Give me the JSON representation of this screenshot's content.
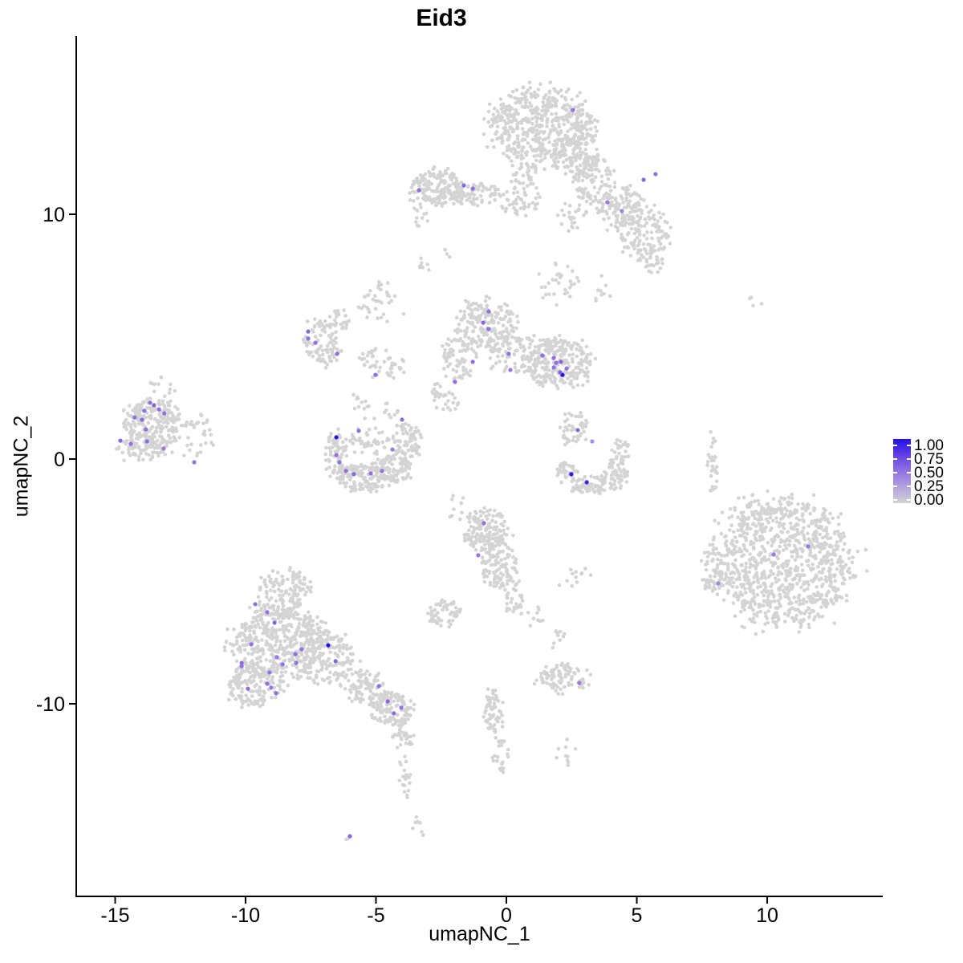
{
  "title": "Eid3",
  "axes": {
    "x": {
      "label": "umapNC_1",
      "ticks": [
        -15,
        -10,
        -5,
        0,
        5,
        10
      ]
    },
    "y": {
      "label": "umapNC_2",
      "ticks": [
        10,
        0,
        -10
      ]
    }
  },
  "legend": {
    "labels": [
      "1.00",
      "0.75",
      "0.50",
      "0.25",
      "0.00"
    ],
    "values": [
      1.0,
      0.75,
      0.5,
      0.25,
      0.0
    ]
  },
  "style": {
    "background": "#ffffff",
    "axis_color": "#000000",
    "gray_point_color": "#d4d4d4",
    "gradient_stops": [
      {
        "t": 0.0,
        "color": "#d3d3d3"
      },
      {
        "t": 0.25,
        "color": "#b3a3df"
      },
      {
        "t": 0.5,
        "color": "#8f72e2"
      },
      {
        "t": 0.75,
        "color": "#6340e6"
      },
      {
        "t": 1.0,
        "color": "#2111e8"
      }
    ],
    "gray_point_radius": 2.3,
    "expr_point_radius": 2.6
  },
  "chart_data": {
    "type": "scatter",
    "title": "Eid3",
    "xlabel": "umapNC_1",
    "ylabel": "umapNC_2",
    "xlim": [
      -16.5,
      14.4
    ],
    "ylim": [
      -17.9,
      17.3
    ],
    "legend_range": [
      0.0,
      1.0
    ],
    "legend_breaks": [
      0.0,
      0.25,
      0.5,
      0.75,
      1.0
    ],
    "clusters": [
      {
        "cx": 1.35,
        "cy": 13.6,
        "rx": 1.75,
        "ry": 1.35,
        "n": 520
      },
      {
        "cx": 2.75,
        "cy": 12.6,
        "rx": 0.85,
        "ry": 1.05,
        "n": 130
      },
      {
        "cx": 0.75,
        "cy": 11.1,
        "rx": 0.55,
        "ry": 0.95,
        "n": 55
      },
      {
        "cx": 3.3,
        "cy": 11.3,
        "rx": 0.75,
        "ry": 0.85,
        "n": 90
      },
      {
        "cx": 4.35,
        "cy": 10.3,
        "rx": 0.8,
        "ry": 0.8,
        "n": 110
      },
      {
        "cx": 5.3,
        "cy": 9.3,
        "rx": 0.85,
        "ry": 0.9,
        "n": 120
      },
      {
        "cx": 5.6,
        "cy": 8.2,
        "rx": 0.5,
        "ry": 0.55,
        "n": 35
      },
      {
        "cx": 2.5,
        "cy": 9.9,
        "rx": 0.5,
        "ry": 0.6,
        "n": 25
      },
      {
        "cx": -2.6,
        "cy": 11.1,
        "rx": 1.0,
        "ry": 0.65,
        "n": 170
      },
      {
        "cx": -1.1,
        "cy": 10.8,
        "rx": 0.85,
        "ry": 0.4,
        "n": 70
      },
      {
        "cx": 0.5,
        "cy": 10.4,
        "rx": 0.7,
        "ry": 0.35,
        "n": 25
      },
      {
        "cx": -3.3,
        "cy": 9.9,
        "rx": 0.3,
        "ry": 0.45,
        "n": 12
      },
      {
        "cx": -0.75,
        "cy": 5.5,
        "rx": 1.0,
        "ry": 0.95,
        "n": 170
      },
      {
        "cx": -1.8,
        "cy": 4.3,
        "rx": 0.55,
        "ry": 0.95,
        "n": 80
      },
      {
        "cx": 0.3,
        "cy": 4.3,
        "rx": 0.95,
        "ry": 0.85,
        "n": 90
      },
      {
        "cx": 2.0,
        "cy": 3.9,
        "rx": 1.1,
        "ry": 0.95,
        "n": 260
      },
      {
        "cx": -2.3,
        "cy": 2.6,
        "rx": 0.5,
        "ry": 0.7,
        "n": 35
      },
      {
        "cx": 1.9,
        "cy": 7.2,
        "rx": 0.7,
        "ry": 0.8,
        "n": 30
      },
      {
        "cx": 3.6,
        "cy": 6.9,
        "rx": 0.4,
        "ry": 0.5,
        "n": 10
      },
      {
        "cx": -7.1,
        "cy": 4.7,
        "rx": 0.65,
        "ry": 0.85,
        "n": 90
      },
      {
        "cx": -6.5,
        "cy": 5.7,
        "rx": 0.45,
        "ry": 0.4,
        "n": 25
      },
      {
        "cx": -4.9,
        "cy": 6.3,
        "rx": 0.8,
        "ry": 0.6,
        "n": 30
      },
      {
        "cx": -4.8,
        "cy": 3.9,
        "rx": 0.9,
        "ry": 0.55,
        "n": 45
      },
      {
        "cx": -13.6,
        "cy": 1.5,
        "rx": 1.0,
        "ry": 0.85,
        "n": 220
      },
      {
        "cx": -13.9,
        "cy": 0.45,
        "rx": 0.85,
        "ry": 0.5,
        "n": 80
      },
      {
        "cx": -12.1,
        "cy": 1.0,
        "rx": 0.8,
        "ry": 0.8,
        "n": 35
      },
      {
        "cx": -13.1,
        "cy": 3.0,
        "rx": 0.6,
        "ry": 0.35,
        "n": 12
      },
      {
        "cx": -6.5,
        "cy": 0.3,
        "rx": 0.4,
        "ry": 0.85,
        "n": 70
      },
      {
        "cx": -5.5,
        "cy": -0.75,
        "rx": 0.85,
        "ry": 0.5,
        "n": 130
      },
      {
        "cx": -4.3,
        "cy": -0.4,
        "rx": 0.6,
        "ry": 0.55,
        "n": 100
      },
      {
        "cx": -3.8,
        "cy": 0.8,
        "rx": 0.5,
        "ry": 0.65,
        "n": 70
      },
      {
        "cx": -5.3,
        "cy": 0.7,
        "rx": 0.7,
        "ry": 0.55,
        "n": 45
      },
      {
        "cx": -5.0,
        "cy": 2.2,
        "rx": 0.9,
        "ry": 0.5,
        "n": 22
      },
      {
        "cx": 2.6,
        "cy": 1.3,
        "rx": 0.55,
        "ry": 0.6,
        "n": 45
      },
      {
        "cx": 2.3,
        "cy": -0.55,
        "rx": 0.35,
        "ry": 0.4,
        "n": 35
      },
      {
        "cx": 3.2,
        "cy": -1.05,
        "rx": 0.6,
        "ry": 0.35,
        "n": 70
      },
      {
        "cx": 4.2,
        "cy": -0.6,
        "rx": 0.4,
        "ry": 0.55,
        "n": 60
      },
      {
        "cx": 4.45,
        "cy": 0.4,
        "rx": 0.3,
        "ry": 0.45,
        "n": 25
      },
      {
        "cx": -0.8,
        "cy": -2.9,
        "rx": 0.8,
        "ry": 0.75,
        "n": 150
      },
      {
        "cx": -0.3,
        "cy": -4.3,
        "rx": 0.6,
        "ry": 0.85,
        "n": 110
      },
      {
        "cx": 0.25,
        "cy": -5.6,
        "rx": 0.35,
        "ry": 0.6,
        "n": 30
      },
      {
        "cx": 1.0,
        "cy": -6.3,
        "rx": 0.5,
        "ry": 0.5,
        "n": 12
      },
      {
        "cx": 2.6,
        "cy": -4.8,
        "rx": 0.6,
        "ry": 0.5,
        "n": 12
      },
      {
        "cx": 10.6,
        "cy": -4.3,
        "rx": 2.4,
        "ry": 2.25,
        "n": 950
      },
      {
        "cx": 7.9,
        "cy": -4.5,
        "rx": 0.4,
        "ry": 0.85,
        "n": 45
      },
      {
        "cx": 10.1,
        "cy": -2.0,
        "rx": 1.2,
        "ry": 0.5,
        "n": 50
      },
      {
        "cx": 7.9,
        "cy": -0.2,
        "rx": 0.2,
        "ry": 1.1,
        "n": 30
      },
      {
        "cx": 9.5,
        "cy": 6.35,
        "rx": 0.3,
        "ry": 0.25,
        "n": 4
      },
      {
        "cx": -8.5,
        "cy": -5.4,
        "rx": 0.9,
        "ry": 0.75,
        "n": 140
      },
      {
        "cx": -8.7,
        "cy": -7.5,
        "rx": 1.6,
        "ry": 1.25,
        "n": 470
      },
      {
        "cx": -9.6,
        "cy": -9.2,
        "rx": 0.95,
        "ry": 0.8,
        "n": 160
      },
      {
        "cx": -6.9,
        "cy": -8.1,
        "rx": 1.0,
        "ry": 0.95,
        "n": 160
      },
      {
        "cx": -5.5,
        "cy": -9.3,
        "rx": 0.75,
        "ry": 0.6,
        "n": 90
      },
      {
        "cx": -4.4,
        "cy": -10.2,
        "rx": 0.75,
        "ry": 0.6,
        "n": 130
      },
      {
        "cx": -3.95,
        "cy": -11.3,
        "rx": 0.4,
        "ry": 0.5,
        "n": 30
      },
      {
        "cx": -3.85,
        "cy": -12.9,
        "rx": 0.25,
        "ry": 0.85,
        "n": 20
      },
      {
        "cx": 2.2,
        "cy": -8.9,
        "rx": 0.9,
        "ry": 0.55,
        "n": 90
      },
      {
        "cx": 2.0,
        "cy": -7.4,
        "rx": 0.3,
        "ry": 0.5,
        "n": 10
      },
      {
        "cx": 2.3,
        "cy": -11.9,
        "rx": 0.4,
        "ry": 0.5,
        "n": 10
      },
      {
        "cx": -0.45,
        "cy": -10.3,
        "rx": 0.35,
        "ry": 0.9,
        "n": 60
      },
      {
        "cx": -0.2,
        "cy": -12.1,
        "rx": 0.3,
        "ry": 0.6,
        "n": 25
      },
      {
        "cx": -2.4,
        "cy": -6.3,
        "rx": 0.55,
        "ry": 0.5,
        "n": 60
      },
      {
        "cx": -1.9,
        "cy": -1.9,
        "rx": 0.5,
        "ry": 0.5,
        "n": 10
      },
      {
        "cx": -6.1,
        "cy": -15.4,
        "rx": 0.15,
        "ry": 0.12,
        "n": 2
      },
      {
        "cx": -3.5,
        "cy": -15.1,
        "rx": 0.3,
        "ry": 0.5,
        "n": 8
      },
      {
        "cx": -3.1,
        "cy": 7.9,
        "rx": 0.35,
        "ry": 0.3,
        "n": 9
      },
      {
        "cx": -4.7,
        "cy": 7.05,
        "rx": 0.3,
        "ry": 0.25,
        "n": 6
      },
      {
        "cx": -2.4,
        "cy": 8.35,
        "rx": 0.25,
        "ry": 0.2,
        "n": 4
      }
    ],
    "expressing_points": [
      {
        "x": -13.66,
        "y": 2.3,
        "v": 0.5
      },
      {
        "x": -13.51,
        "y": 2.2,
        "v": 0.55
      },
      {
        "x": -13.88,
        "y": 1.97,
        "v": 0.5
      },
      {
        "x": -13.32,
        "y": 2.03,
        "v": 0.5
      },
      {
        "x": -13.11,
        "y": 1.87,
        "v": 0.5
      },
      {
        "x": -14.25,
        "y": 1.7,
        "v": 0.5
      },
      {
        "x": -13.97,
        "y": 1.61,
        "v": 0.55
      },
      {
        "x": -13.82,
        "y": 1.21,
        "v": 0.5
      },
      {
        "x": -14.8,
        "y": 0.75,
        "v": 0.55
      },
      {
        "x": -14.4,
        "y": 0.62,
        "v": 0.5
      },
      {
        "x": -13.78,
        "y": 0.72,
        "v": 0.5
      },
      {
        "x": -13.14,
        "y": 0.43,
        "v": 0.45
      },
      {
        "x": -11.97,
        "y": -0.13,
        "v": 0.5
      },
      {
        "x": -0.68,
        "y": 6.03,
        "v": 0.5
      },
      {
        "x": -0.89,
        "y": 5.57,
        "v": 0.55
      },
      {
        "x": -0.68,
        "y": 5.31,
        "v": 0.5
      },
      {
        "x": 0.09,
        "y": 4.3,
        "v": 0.5
      },
      {
        "x": -1.29,
        "y": 3.97,
        "v": 0.5
      },
      {
        "x": 0.15,
        "y": 3.64,
        "v": 0.45
      },
      {
        "x": 1.38,
        "y": 4.23,
        "v": 0.5
      },
      {
        "x": 1.82,
        "y": 4.13,
        "v": 0.5
      },
      {
        "x": 2.09,
        "y": 3.97,
        "v": 0.55
      },
      {
        "x": 1.91,
        "y": 3.93,
        "v": 0.5
      },
      {
        "x": 1.82,
        "y": 3.74,
        "v": 0.5
      },
      {
        "x": 2.31,
        "y": 3.7,
        "v": 0.5
      },
      {
        "x": 2.15,
        "y": 3.44,
        "v": 1.0
      },
      {
        "x": 2.06,
        "y": 3.54,
        "v": 0.6
      },
      {
        "x": -1.97,
        "y": 3.15,
        "v": 0.5
      },
      {
        "x": -9.63,
        "y": -5.93,
        "v": 0.5
      },
      {
        "x": -9.17,
        "y": -6.26,
        "v": 0.5
      },
      {
        "x": -8.89,
        "y": -6.69,
        "v": 0.55
      },
      {
        "x": -9.78,
        "y": -7.57,
        "v": 0.5
      },
      {
        "x": -7.85,
        "y": -7.77,
        "v": 0.5
      },
      {
        "x": -8.09,
        "y": -7.97,
        "v": 0.5
      },
      {
        "x": -8.8,
        "y": -8.1,
        "v": 0.45
      },
      {
        "x": -8.06,
        "y": -8.33,
        "v": 0.5
      },
      {
        "x": -8.58,
        "y": -8.39,
        "v": 0.5
      },
      {
        "x": -10.15,
        "y": -8.33,
        "v": 0.55
      },
      {
        "x": -10.15,
        "y": -8.46,
        "v": 0.5
      },
      {
        "x": -9.08,
        "y": -8.72,
        "v": 0.5
      },
      {
        "x": -9.17,
        "y": -9.18,
        "v": 0.5
      },
      {
        "x": -9.02,
        "y": -9.34,
        "v": 0.45
      },
      {
        "x": -9.91,
        "y": -9.38,
        "v": 0.5
      },
      {
        "x": -8.83,
        "y": -9.57,
        "v": 0.5
      },
      {
        "x": -6.83,
        "y": -7.61,
        "v": 1.0
      },
      {
        "x": -6.55,
        "y": -8.26,
        "v": 0.55
      },
      {
        "x": -4.89,
        "y": -9.28,
        "v": 0.5
      },
      {
        "x": -4.55,
        "y": -9.9,
        "v": 0.55
      },
      {
        "x": -4.03,
        "y": -10.16,
        "v": 0.5
      },
      {
        "x": -4.31,
        "y": -10.39,
        "v": 0.5
      },
      {
        "x": 2.55,
        "y": 14.26,
        "v": 0.5
      },
      {
        "x": 5.26,
        "y": 11.41,
        "v": 0.55
      },
      {
        "x": 5.72,
        "y": 11.64,
        "v": 0.5
      },
      {
        "x": 3.88,
        "y": 10.49,
        "v": 0.45
      },
      {
        "x": 4.43,
        "y": 10.13,
        "v": 0.4
      },
      {
        "x": -3.35,
        "y": 10.98,
        "v": 0.5
      },
      {
        "x": -1.63,
        "y": 11.18,
        "v": 0.55
      },
      {
        "x": -1.29,
        "y": 11.05,
        "v": 0.5
      },
      {
        "x": -7.6,
        "y": 5.21,
        "v": 0.55
      },
      {
        "x": -7.6,
        "y": 4.92,
        "v": 0.5
      },
      {
        "x": -7.32,
        "y": 4.75,
        "v": 0.5
      },
      {
        "x": -6.49,
        "y": 4.3,
        "v": 0.5
      },
      {
        "x": -5.02,
        "y": 3.44,
        "v": 0.5
      },
      {
        "x": -6.52,
        "y": 0.89,
        "v": 1.0
      },
      {
        "x": -5.66,
        "y": 1.15,
        "v": 0.5
      },
      {
        "x": -4.0,
        "y": 1.61,
        "v": 0.5
      },
      {
        "x": -6.52,
        "y": 0.16,
        "v": 0.5
      },
      {
        "x": -6.4,
        "y": -0.13,
        "v": 0.5
      },
      {
        "x": -6.15,
        "y": -0.49,
        "v": 0.5
      },
      {
        "x": -5.85,
        "y": -0.62,
        "v": 0.55
      },
      {
        "x": -5.2,
        "y": -0.59,
        "v": 0.5
      },
      {
        "x": -4.77,
        "y": -0.49,
        "v": 0.5
      },
      {
        "x": -4.37,
        "y": 0.39,
        "v": 0.45
      },
      {
        "x": 2.74,
        "y": 1.18,
        "v": 0.55
      },
      {
        "x": 3.29,
        "y": 0.72,
        "v": 0.35
      },
      {
        "x": 2.49,
        "y": -0.62,
        "v": 0.95
      },
      {
        "x": 3.08,
        "y": -0.95,
        "v": 0.9
      },
      {
        "x": -0.86,
        "y": -2.62,
        "v": 0.5
      },
      {
        "x": -1.08,
        "y": -3.93,
        "v": 0.45
      },
      {
        "x": 2.8,
        "y": -9.15,
        "v": 0.45
      },
      {
        "x": -6.0,
        "y": -15.41,
        "v": 0.55
      },
      {
        "x": 8.12,
        "y": -5.08,
        "v": 0.4
      },
      {
        "x": 10.25,
        "y": -3.9,
        "v": 0.45
      },
      {
        "x": 11.57,
        "y": -3.57,
        "v": 0.45
      }
    ]
  }
}
